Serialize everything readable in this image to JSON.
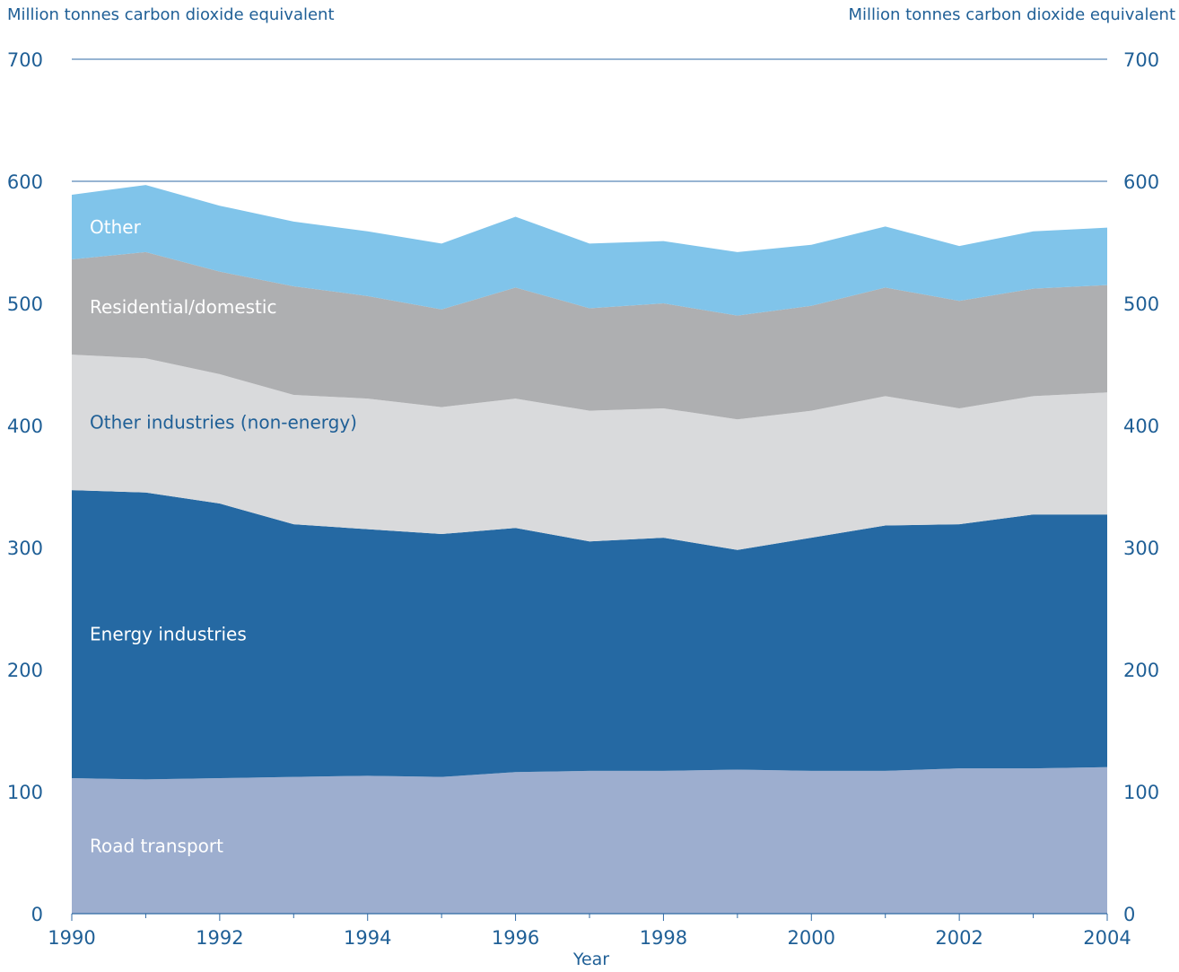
{
  "chart_data": {
    "type": "area",
    "stacked": true,
    "left_axis_label": "Million tonnes carbon dioxide equivalent",
    "right_axis_label": "Million tonnes carbon dioxide equivalent",
    "xlabel": "Year",
    "ylim": [
      0,
      700
    ],
    "y_ticks": [
      0,
      100,
      200,
      300,
      400,
      500,
      600,
      700
    ],
    "x": [
      1990,
      1991,
      1992,
      1993,
      1994,
      1995,
      1996,
      1997,
      1998,
      1999,
      2000,
      2001,
      2002,
      2003,
      2004
    ],
    "x_tick_labels": [
      "1990",
      "1992",
      "1994",
      "1996",
      "1998",
      "2000",
      "2002",
      "2004"
    ],
    "grid": "horizontal at 600 and 700",
    "series": [
      {
        "name": "Road transport",
        "color": "#9daecf",
        "label_color": "#ffffff",
        "values": [
          111,
          110,
          111,
          112,
          113,
          112,
          116,
          117,
          117,
          118,
          117,
          117,
          119,
          119,
          120
        ]
      },
      {
        "name": "Energy industries",
        "color": "#2569a3",
        "label_color": "#ffffff",
        "values": [
          236,
          235,
          225,
          207,
          202,
          199,
          200,
          188,
          191,
          180,
          191,
          201,
          200,
          208,
          207
        ]
      },
      {
        "name": "Other industries (non-energy)",
        "color": "#d9dadc",
        "label_color": "#1f5f96",
        "values": [
          111,
          110,
          106,
          106,
          107,
          104,
          106,
          107,
          106,
          107,
          104,
          106,
          95,
          97,
          100
        ]
      },
      {
        "name": "Residential/domestic",
        "color": "#aeafb1",
        "label_color": "#ffffff",
        "values": [
          78,
          87,
          84,
          89,
          84,
          80,
          91,
          84,
          86,
          85,
          86,
          89,
          88,
          88,
          88
        ]
      },
      {
        "name": "Other",
        "color": "#80c4ea",
        "label_color": "#ffffff",
        "values": [
          53,
          55,
          54,
          53,
          53,
          54,
          58,
          53,
          51,
          52,
          50,
          50,
          45,
          47,
          47
        ]
      }
    ]
  }
}
